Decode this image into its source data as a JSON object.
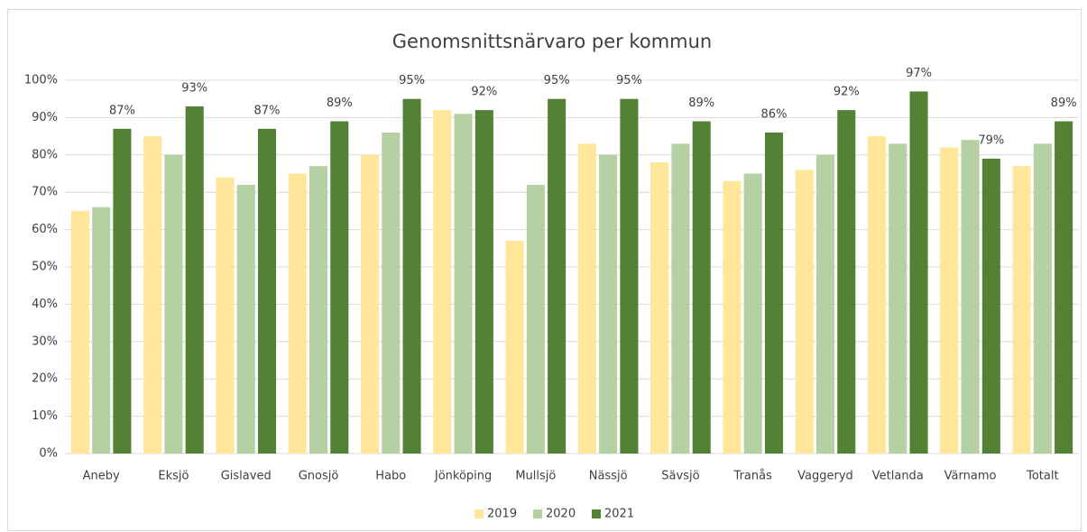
{
  "chart_data": {
    "type": "bar",
    "title": "Genomsnittsnärvaro per kommun",
    "categories": [
      "Aneby",
      "Eksjö",
      "Gislaved",
      "Gnosjö",
      "Habo",
      "Jönköping",
      "Mullsjö",
      "Nässjö",
      "Sävsjö",
      "Tranås",
      "Vaggeryd",
      "Vetlanda",
      "Värnamo",
      "Totalt"
    ],
    "series": [
      {
        "name": "2019",
        "color": "#ffe699",
        "values": [
          65,
          85,
          74,
          75,
          80,
          92,
          57,
          83,
          78,
          73,
          76,
          85,
          82,
          77
        ]
      },
      {
        "name": "2020",
        "color": "#b5d1a3",
        "values": [
          66,
          80,
          72,
          77,
          86,
          91,
          72,
          80,
          83,
          75,
          80,
          83,
          84,
          83
        ]
      },
      {
        "name": "2021",
        "color": "#548235",
        "values": [
          87,
          93,
          87,
          89,
          95,
          92,
          95,
          95,
          89,
          86,
          92,
          97,
          79,
          89
        ],
        "value_labels": [
          "87%",
          "93%",
          "87%",
          "89%",
          "95%",
          "92%",
          "95%",
          "95%",
          "89%",
          "86%",
          "92%",
          "97%",
          "79%",
          "89%"
        ]
      }
    ],
    "ylim": [
      0,
      100
    ],
    "yticks": [
      {
        "value": 0,
        "label": "0%"
      },
      {
        "value": 10,
        "label": "10%"
      },
      {
        "value": 20,
        "label": "20%"
      },
      {
        "value": 30,
        "label": "30%"
      },
      {
        "value": 40,
        "label": "40%"
      },
      {
        "value": 50,
        "label": "50%"
      },
      {
        "value": 60,
        "label": "60%"
      },
      {
        "value": 70,
        "label": "70%"
      },
      {
        "value": 80,
        "label": "80%"
      },
      {
        "value": 90,
        "label": "90%"
      },
      {
        "value": 100,
        "label": "100%"
      }
    ],
    "grid": true,
    "legend": "bottom"
  }
}
